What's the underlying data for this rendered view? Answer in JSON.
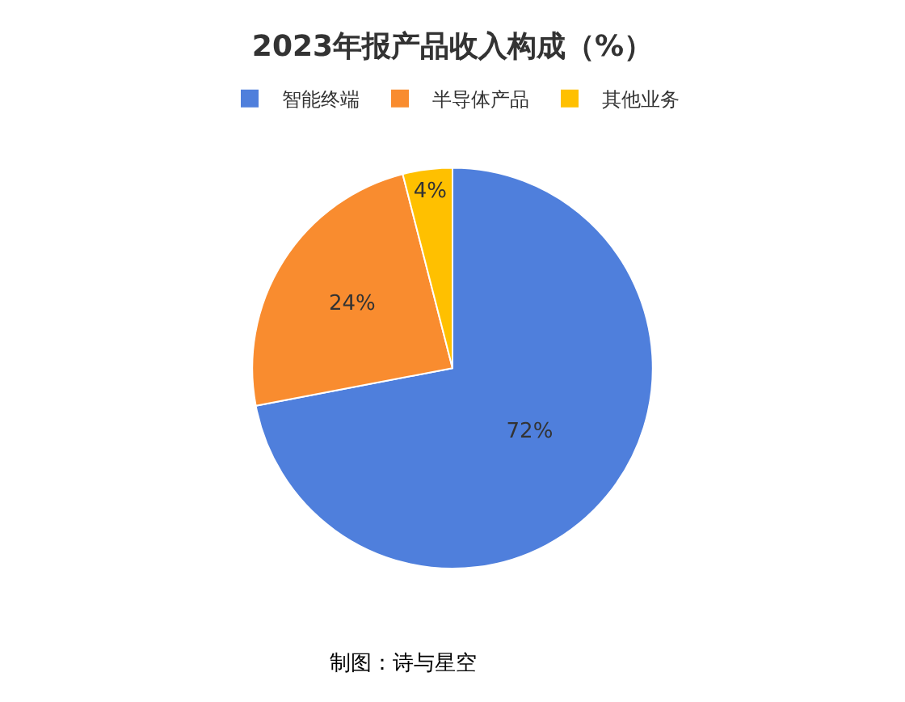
{
  "chart_data": {
    "type": "pie",
    "title": "2023年报产品收入构成（%）",
    "categories": [
      "智能终端",
      "半导体产品",
      "其他业务"
    ],
    "values": [
      72,
      24,
      4
    ],
    "value_labels": [
      "72%",
      "24%",
      "4%"
    ],
    "colors": [
      "#4f7fdc",
      "#f98c2f",
      "#ffc000"
    ],
    "legend": "top",
    "annotations": [
      "制图：诗与星空"
    ]
  }
}
